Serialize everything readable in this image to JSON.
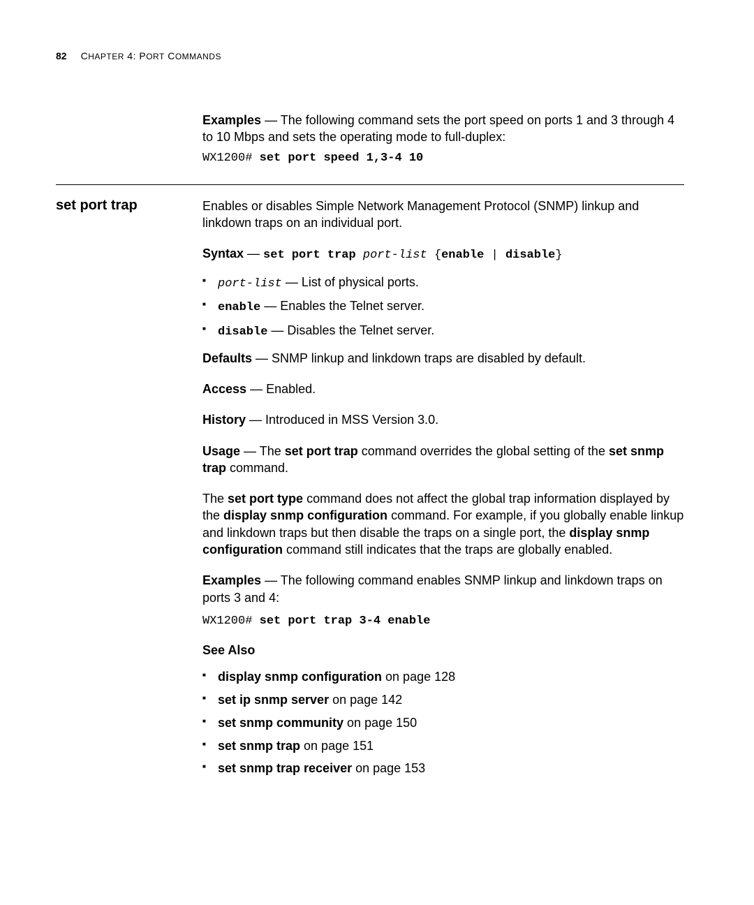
{
  "header": {
    "page_number": "82",
    "chapter_small": "C",
    "chapter_rest_1": "HAPTER",
    "chapter_num": " 4: P",
    "chapter_rest_2": "ORT",
    "chapter_rest_3": " C",
    "chapter_rest_4": "OMMANDS"
  },
  "intro": {
    "examples_label": "Examples",
    "examples_text": " — The following command sets the port speed on ports 1 and 3 through 4 to 10 Mbps and sets the operating mode to full-duplex:",
    "code_prefix": "WX1200# ",
    "code_cmd": "set port speed 1,3-4 10"
  },
  "section": {
    "title": "set port trap",
    "desc": "Enables or disables Simple Network Management Protocol (SNMP) linkup and linkdown traps on an individual port.",
    "syntax_label": "Syntax",
    "syntax_dash": " — ",
    "syntax_cmd": "set port trap ",
    "syntax_arg": "port-list",
    "syntax_rest": " {",
    "syntax_enable": "enable",
    "syntax_pipe": " | ",
    "syntax_disable": "disable",
    "syntax_close": "}",
    "bullet1_code": "port-list",
    "bullet1_text": " — List of physical ports.",
    "bullet2_code": "enable",
    "bullet2_text": " — Enables the Telnet server.",
    "bullet3_code": "disable",
    "bullet3_text": " — Disables the Telnet server.",
    "defaults_label": "Defaults",
    "defaults_text": " — SNMP linkup and linkdown traps are disabled by default.",
    "access_label": "Access",
    "access_text": " — Enabled.",
    "history_label": "History",
    "history_text": " — Introduced in MSS Version 3.0.",
    "usage_label": "Usage",
    "usage_text1": " — The ",
    "usage_bold1": "set port trap",
    "usage_text2": " command overrides the global setting of the ",
    "usage_bold2": "set snmp trap",
    "usage_text3": " command.",
    "para2_text1": "The ",
    "para2_bold1": "set port type",
    "para2_text2": " command does not affect the global trap information displayed by the ",
    "para2_bold2": "display snmp configuration",
    "para2_text3": " command. For example, if you globally enable linkup and linkdown traps but then disable the traps on a single port, the ",
    "para2_bold3": "display snmp configuration",
    "para2_text4": " command still indicates that the traps are globally enabled.",
    "examples2_label": "Examples",
    "examples2_text": " — The following command enables SNMP linkup and linkdown traps on ports 3 and 4:",
    "code2_prefix": "WX1200# ",
    "code2_cmd": "set port trap 3-4 enable",
    "see_also_label": "See Also",
    "see_also": [
      {
        "bold": "display snmp configuration",
        "rest": " on page 128"
      },
      {
        "bold": "set ip snmp server",
        "rest": " on page 142"
      },
      {
        "bold": "set snmp community",
        "rest": " on page 150"
      },
      {
        "bold": "set snmp trap",
        "rest": " on page 151"
      },
      {
        "bold": "set snmp trap receiver",
        "rest": " on page 153"
      }
    ]
  }
}
